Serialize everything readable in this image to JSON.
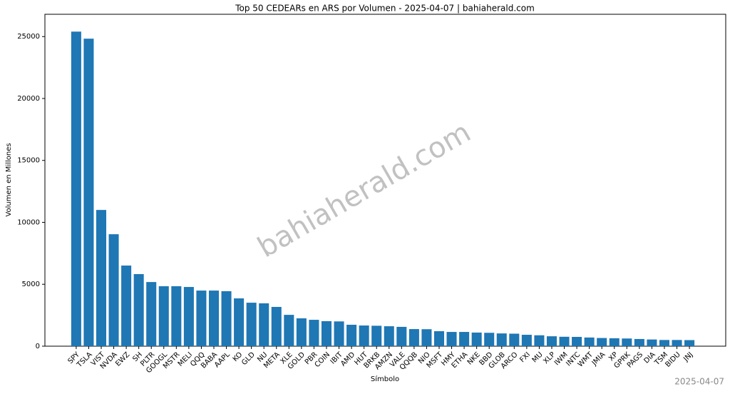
{
  "chart_data": {
    "type": "bar",
    "title": "Top 50 CEDEARs en ARS por Volumen - 2025-04-07 | bahiaherald.com",
    "xlabel": "Símbolo",
    "ylabel": "Volumen en Millones",
    "watermark": "bahiaherald.com",
    "date_stamp": "2025-04-07",
    "categories": [
      "SPY",
      "TSLA",
      "VIST",
      "NVDA",
      "EWZ",
      "SH",
      "PLTR",
      "GOOGL",
      "MSTR",
      "MELI",
      "QQQ",
      "BABA",
      "AAPL",
      "KO",
      "GLD",
      "NU",
      "META",
      "XLE",
      "GOLD",
      "PBR",
      "COIN",
      "IBIT",
      "AMD",
      "HUT",
      "BRKB",
      "AMZN",
      "VALE",
      "QQQB",
      "NIO",
      "MSFT",
      "HMY",
      "ETHA",
      "NKE",
      "BBD",
      "GLOB",
      "ARCO",
      "FXI",
      "MU",
      "XLP",
      "IWM",
      "INTC",
      "WMT",
      "JMIA",
      "XP",
      "GPRK",
      "PAGS",
      "DIA",
      "TSM",
      "BIDU",
      "JNJ"
    ],
    "values": [
      25400,
      24830,
      11000,
      9040,
      6510,
      5820,
      5180,
      4840,
      4840,
      4780,
      4490,
      4490,
      4440,
      3860,
      3510,
      3460,
      3170,
      2530,
      2250,
      2130,
      2020,
      2000,
      1730,
      1670,
      1650,
      1610,
      1560,
      1380,
      1370,
      1210,
      1150,
      1150,
      1100,
      1080,
      1030,
      1010,
      920,
      880,
      800,
      760,
      750,
      700,
      660,
      640,
      620,
      580,
      540,
      500,
      500,
      490
    ],
    "color": "#1f77b4",
    "ylim": [
      0,
      26800
    ],
    "yticks": [
      0,
      5000,
      10000,
      15000,
      20000,
      25000
    ],
    "grid": false
  }
}
